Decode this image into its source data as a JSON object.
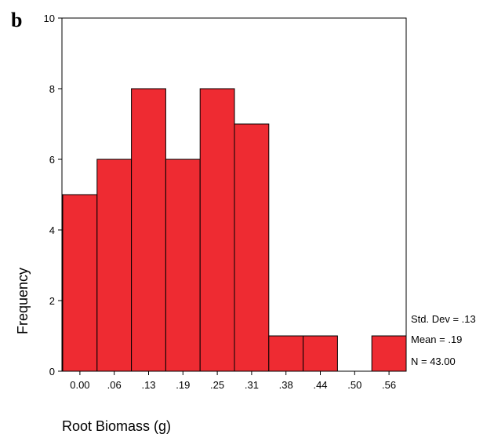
{
  "panel_label": "b",
  "chart_data": {
    "type": "bar",
    "title": "",
    "xlabel": "Root Biomass (g)",
    "ylabel": "Frequency",
    "categories": [
      "0.00",
      ".06",
      ".13",
      ".19",
      ".25",
      ".31",
      ".38",
      ".44",
      ".50",
      ".56"
    ],
    "values": [
      5,
      6,
      8,
      6,
      8,
      7,
      1,
      1,
      0,
      1
    ],
    "ylim": [
      0,
      10
    ],
    "yticks": [
      "0",
      "2",
      "4",
      "6",
      "8",
      "10"
    ],
    "grid": false,
    "bar_color": "#ee2b32",
    "stats": {
      "std_dev": "Std. Dev = .13",
      "mean": "Mean = .19",
      "n": "N = 43.00"
    }
  }
}
